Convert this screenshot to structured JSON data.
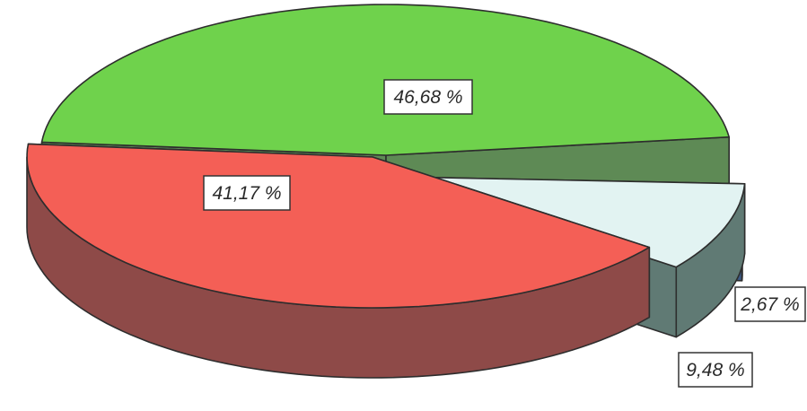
{
  "chart_data": {
    "type": "pie",
    "three_d": true,
    "exploded": true,
    "legend": "none",
    "slices": [
      {
        "value": 46.68,
        "label": "46,68 %",
        "color": "#6fd24c",
        "side_color": "#5e8a55"
      },
      {
        "value": 2.67,
        "label": "2,67 %",
        "color": "#3a63cf",
        "side_color": "#3c5a86"
      },
      {
        "value": 9.48,
        "label": "9,48 %",
        "color": "#e2f3f2",
        "side_color": "#607a74"
      },
      {
        "value": 41.17,
        "label": "41,17 %",
        "color": "#f45f56",
        "side_color": "#8e4a48"
      }
    ]
  }
}
